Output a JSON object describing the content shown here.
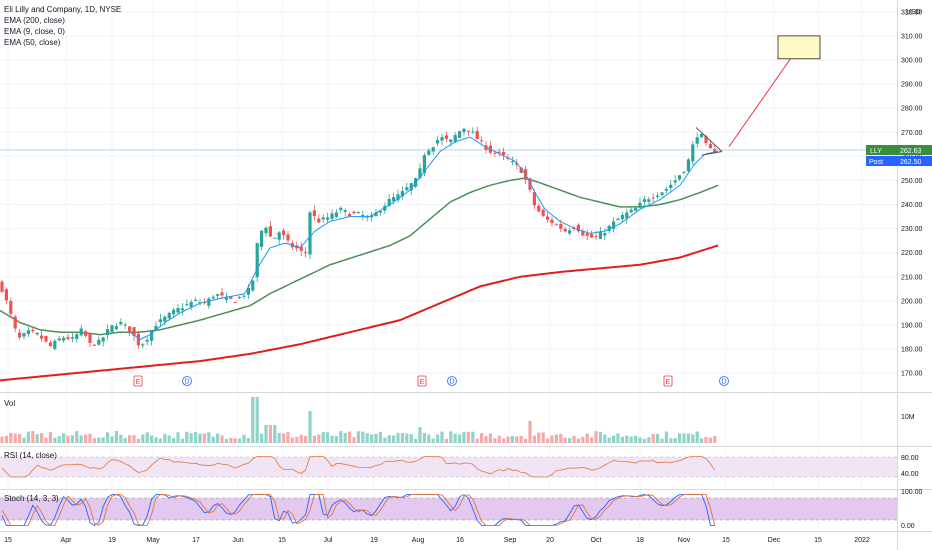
{
  "legend": {
    "title": "Eli Lilly and Company, 1D, NYSE",
    "ema200": "EMA (200, close)",
    "ema9": "EMA (9, close, 0)",
    "ema50": "EMA (50, close)"
  },
  "panes": {
    "volume_title": "Vol",
    "rsi_title": "RSI (14, close)",
    "stoch_title": "Stoch (14, 3, 3)"
  },
  "currency": "USD",
  "price_tags": {
    "last_label": "LLY",
    "last_value": "262.63",
    "post_label": "Post",
    "post_value": "262.50"
  },
  "colors": {
    "up": "#26a69a",
    "down": "#ef5350",
    "ema9": "#2196f3",
    "ema50": "#4e8f57",
    "ema200": "#e01e1e",
    "stoch_fill": "#e3c8f0",
    "rsi_fill": "#f1e4f5",
    "arrow": "#f23645",
    "target_box": "#fff9c4"
  },
  "chart_data": {
    "type": "candlestick",
    "x_ticks": [
      "15",
      "Apr",
      "19",
      "May",
      "17",
      "Jun",
      "15",
      "Jul",
      "19",
      "Aug",
      "16",
      "Sep",
      "20",
      "Oct",
      "18",
      "Nov",
      "15",
      "Dec",
      "15",
      "2022"
    ],
    "y_ticks": [
      "320.00",
      "310.00",
      "300.00",
      "290.00",
      "280.00",
      "270.00",
      "260.00",
      "250.00",
      "240.00",
      "230.00",
      "220.00",
      "210.00",
      "200.00",
      "190.00",
      "180.00",
      "170.00"
    ],
    "ylim": [
      163,
      322
    ],
    "volume_ticks": [
      "10M"
    ],
    "rsi_ticks": [
      "80.00",
      "40.00"
    ],
    "stoch_ticks": [
      "100.00",
      "0.00"
    ],
    "price_anchors": [
      [
        0,
        207
      ],
      [
        8,
        198
      ],
      [
        18,
        184
      ],
      [
        28,
        187
      ],
      [
        38,
        186
      ],
      [
        50,
        181
      ],
      [
        62,
        185
      ],
      [
        72,
        184
      ],
      [
        82,
        188
      ],
      [
        90,
        182
      ],
      [
        100,
        183
      ],
      [
        110,
        189
      ],
      [
        120,
        191
      ],
      [
        130,
        188
      ],
      [
        140,
        181
      ],
      [
        148,
        185
      ],
      [
        155,
        190
      ],
      [
        165,
        193
      ],
      [
        175,
        196
      ],
      [
        185,
        198
      ],
      [
        195,
        200
      ],
      [
        205,
        199
      ],
      [
        215,
        203
      ],
      [
        225,
        201
      ],
      [
        235,
        200
      ],
      [
        245,
        203
      ],
      [
        252,
        206
      ],
      [
        258,
        226
      ],
      [
        265,
        232
      ],
      [
        272,
        225
      ],
      [
        280,
        229
      ],
      [
        290,
        223
      ],
      [
        300,
        221
      ],
      [
        305,
        218
      ],
      [
        310,
        237
      ],
      [
        318,
        233
      ],
      [
        330,
        235
      ],
      [
        340,
        238
      ],
      [
        350,
        236
      ],
      [
        360,
        236
      ],
      [
        370,
        234
      ],
      [
        380,
        238
      ],
      [
        390,
        242
      ],
      [
        400,
        244
      ],
      [
        410,
        248
      ],
      [
        418,
        251
      ],
      [
        425,
        262
      ],
      [
        432,
        264
      ],
      [
        440,
        268
      ],
      [
        450,
        266
      ],
      [
        458,
        270
      ],
      [
        465,
        272
      ],
      [
        472,
        270
      ],
      [
        480,
        266
      ],
      [
        490,
        262
      ],
      [
        500,
        261
      ],
      [
        510,
        258
      ],
      [
        520,
        255
      ],
      [
        528,
        248
      ],
      [
        535,
        239
      ],
      [
        545,
        234
      ],
      [
        555,
        232
      ],
      [
        565,
        229
      ],
      [
        575,
        231
      ],
      [
        585,
        227
      ],
      [
        595,
        226
      ],
      [
        605,
        229
      ],
      [
        615,
        233
      ],
      [
        625,
        236
      ],
      [
        635,
        238
      ],
      [
        645,
        242
      ],
      [
        655,
        244
      ],
      [
        665,
        246
      ],
      [
        675,
        250
      ],
      [
        685,
        255
      ],
      [
        690,
        260
      ],
      [
        695,
        268
      ],
      [
        700,
        270
      ],
      [
        705,
        265
      ],
      [
        712,
        262
      ],
      [
        718,
        262.6
      ]
    ],
    "ema9_anchors": [
      [
        130,
        187
      ],
      [
        140,
        184
      ],
      [
        150,
        186
      ],
      [
        165,
        191
      ],
      [
        180,
        195
      ],
      [
        200,
        199
      ],
      [
        220,
        201
      ],
      [
        245,
        203
      ],
      [
        258,
        214
      ],
      [
        270,
        222
      ],
      [
        285,
        224
      ],
      [
        300,
        222
      ],
      [
        315,
        229
      ],
      [
        330,
        233
      ],
      [
        350,
        235
      ],
      [
        370,
        235
      ],
      [
        390,
        240
      ],
      [
        410,
        246
      ],
      [
        425,
        254
      ],
      [
        440,
        262
      ],
      [
        455,
        266
      ],
      [
        470,
        268
      ],
      [
        485,
        264
      ],
      [
        500,
        261
      ],
      [
        515,
        258
      ],
      [
        525,
        253
      ],
      [
        535,
        245
      ],
      [
        545,
        238
      ],
      [
        560,
        233
      ],
      [
        575,
        230
      ],
      [
        590,
        228
      ],
      [
        605,
        229
      ],
      [
        620,
        232
      ],
      [
        640,
        238
      ],
      [
        660,
        242
      ],
      [
        680,
        248
      ],
      [
        695,
        257
      ],
      [
        705,
        261
      ],
      [
        718,
        262
      ]
    ],
    "ema50_anchors": [
      [
        0,
        196
      ],
      [
        20,
        191
      ],
      [
        40,
        188
      ],
      [
        60,
        187
      ],
      [
        80,
        187
      ],
      [
        100,
        186
      ],
      [
        120,
        187
      ],
      [
        140,
        187
      ],
      [
        160,
        188
      ],
      [
        180,
        190
      ],
      [
        200,
        192
      ],
      [
        225,
        195
      ],
      [
        250,
        198
      ],
      [
        270,
        203
      ],
      [
        290,
        207
      ],
      [
        310,
        211
      ],
      [
        330,
        215
      ],
      [
        360,
        219
      ],
      [
        390,
        223
      ],
      [
        410,
        227
      ],
      [
        430,
        234
      ],
      [
        450,
        241
      ],
      [
        470,
        245
      ],
      [
        490,
        248
      ],
      [
        510,
        250
      ],
      [
        525,
        251
      ],
      [
        540,
        249
      ],
      [
        560,
        246
      ],
      [
        580,
        243
      ],
      [
        600,
        241
      ],
      [
        620,
        239
      ],
      [
        640,
        239
      ],
      [
        660,
        240
      ],
      [
        680,
        242
      ],
      [
        700,
        245
      ],
      [
        718,
        248
      ]
    ],
    "ema200_anchors": [
      [
        0,
        167
      ],
      [
        50,
        169
      ],
      [
        100,
        171
      ],
      [
        150,
        173
      ],
      [
        200,
        175
      ],
      [
        250,
        178
      ],
      [
        300,
        182
      ],
      [
        350,
        187
      ],
      [
        400,
        192
      ],
      [
        440,
        199
      ],
      [
        480,
        206
      ],
      [
        520,
        210
      ],
      [
        560,
        212
      ],
      [
        600,
        213.5
      ],
      [
        640,
        215
      ],
      [
        680,
        218
      ],
      [
        718,
        223
      ]
    ],
    "events": [
      {
        "type": "E",
        "x": 138
      },
      {
        "type": "D",
        "x": 187
      },
      {
        "type": "E",
        "x": 422
      },
      {
        "type": "D",
        "x": 452
      },
      {
        "type": "E",
        "x": 668
      },
      {
        "type": "D",
        "x": 724
      }
    ],
    "target_box": {
      "low": 300.5,
      "high": 310
    },
    "triangle": {
      "upper_start": 272,
      "lower_start": 261,
      "apex": 262
    }
  }
}
